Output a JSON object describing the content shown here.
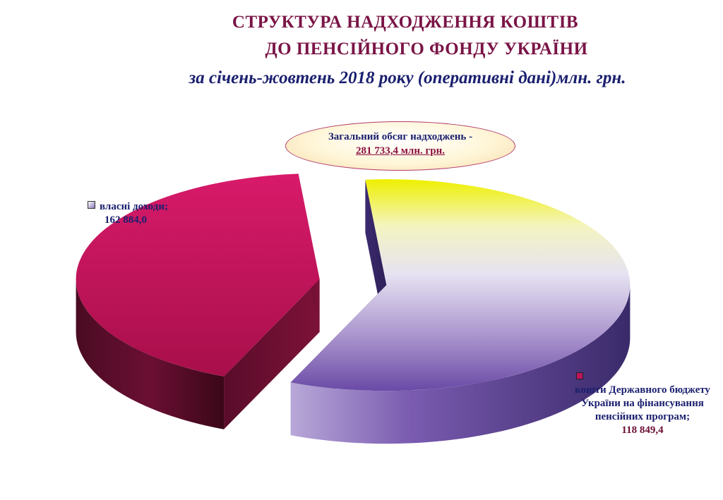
{
  "title_line1": "СТРУКТУРА  НАДХОДЖЕННЯ КОШТІВ",
  "title_line2": "ДО ПЕНСІЙНОГО ФОНДУ УКРАЇНИ",
  "subtitle": "за  січень-жовтень 2018 року (оперативні дані)млн. грн.",
  "total": {
    "label": "Загальний обсяг надходжень -",
    "value": "281 733,4 млн. грн."
  },
  "colors": {
    "own_income": "#6a4aa6",
    "own_income_highlight": "#e8f000",
    "state_budget": "#c0145a",
    "title": "#7a1446",
    "subtitle": "#1a1f6e"
  },
  "chart_data": {
    "type": "pie",
    "style": "3d-exploded",
    "title": "СТРУКТУРА  НАДХОДЖЕННЯ КОШТІВ ДО ПЕНСІЙНОГО ФОНДУ УКРАЇНИ",
    "slices": [
      {
        "name": "власні доходи",
        "value": 162884.0,
        "label": "власні доходи;",
        "value_text": "162 884,0"
      },
      {
        "name": "кошти Державного бюджету України на фінансування пенсійних програм",
        "value": 118849.4,
        "label": "кошти Державного бюджету України на фінансування пенсійних програм;",
        "value_text": "118 849,4"
      }
    ]
  }
}
